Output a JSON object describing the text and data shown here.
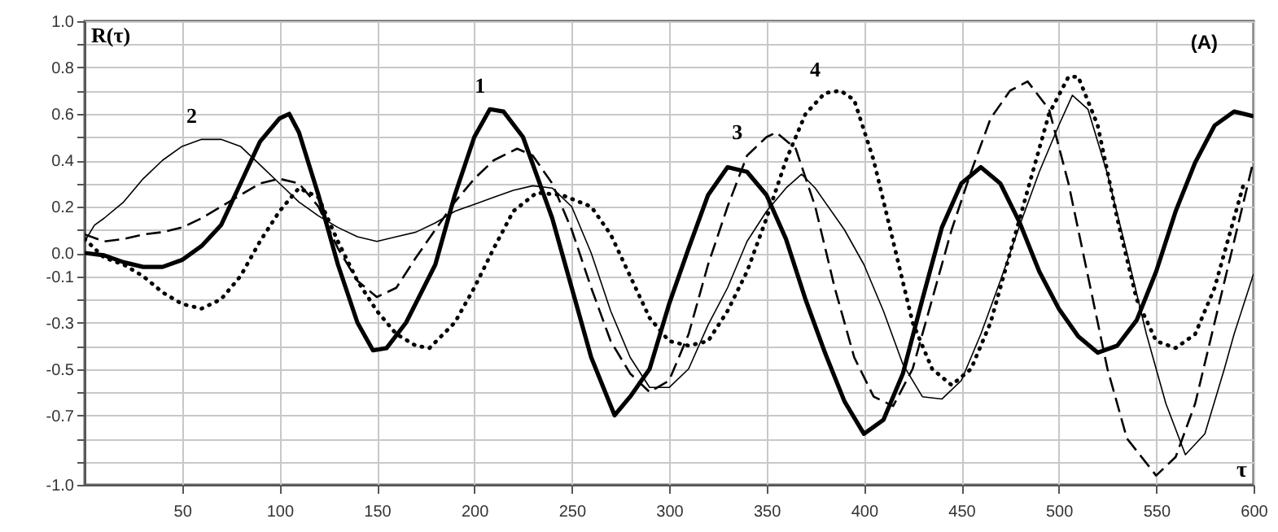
{
  "chart_data": {
    "type": "line",
    "ylabel": "R(τ)",
    "xlabel": "τ",
    "xlim": [
      0,
      600
    ],
    "xticks": [
      50,
      100,
      150,
      200,
      250,
      300,
      350,
      400,
      450,
      500,
      550,
      600
    ],
    "ylim": [
      -1.0,
      1.0
    ],
    "yticks": [
      {
        "value": 1.0,
        "label": "1.0"
      },
      {
        "value": 0.9,
        "label": null
      },
      {
        "value": 0.8,
        "label": "0.8"
      },
      {
        "value": 0.7,
        "label": null
      },
      {
        "value": 0.6,
        "label": "0.6"
      },
      {
        "value": 0.5,
        "label": null
      },
      {
        "value": 0.4,
        "label": "0.4"
      },
      {
        "value": 0.3,
        "label": null
      },
      {
        "value": 0.2,
        "label": "0.2"
      },
      {
        "value": 0.1,
        "label": null
      },
      {
        "value": 0.0,
        "label": "0.0"
      },
      {
        "value": -0.1,
        "label": "-0.1"
      },
      {
        "value": -0.2,
        "label": null
      },
      {
        "value": -0.3,
        "label": "-0.3"
      },
      {
        "value": -0.4,
        "label": null
      },
      {
        "value": -0.5,
        "label": "-0.5"
      },
      {
        "value": -0.6,
        "label": null
      },
      {
        "value": -0.7,
        "label": "-0.7"
      },
      {
        "value": -0.8,
        "label": null
      },
      {
        "value": -0.9,
        "label": null
      },
      {
        "value": -1.0,
        "label": "-1.0"
      }
    ],
    "grid": true,
    "marker": "none",
    "annotations": [
      {
        "text": "1",
        "x": 208,
        "y": 0.62
      },
      {
        "text": "2",
        "x": 60,
        "y": 0.49
      },
      {
        "text": "3",
        "x": 340,
        "y": 0.42
      },
      {
        "text": "4",
        "x": 380,
        "y": 0.69
      },
      "(A)"
    ],
    "series": [
      {
        "color": "#000000",
        "line_style": "solid",
        "x": [
          0,
          10,
          20,
          30,
          40,
          50,
          60,
          70,
          80,
          90,
          100,
          105,
          110,
          120,
          130,
          140,
          148,
          155,
          165,
          180,
          190,
          200,
          208,
          215,
          225,
          240,
          250,
          260,
          272,
          280,
          290,
          300,
          310,
          320,
          330,
          340,
          350,
          360,
          370,
          380,
          390,
          400,
          410,
          420,
          430,
          440,
          450,
          460,
          470,
          480,
          490,
          500,
          510,
          520,
          530,
          540,
          550,
          560,
          570,
          580,
          590,
          600
        ],
        "values": [
          0.0,
          -0.01,
          -0.04,
          -0.06,
          -0.06,
          -0.03,
          0.03,
          0.12,
          0.3,
          0.48,
          0.58,
          0.6,
          0.52,
          0.25,
          -0.05,
          -0.3,
          -0.42,
          -0.41,
          -0.3,
          -0.05,
          0.25,
          0.5,
          0.62,
          0.61,
          0.5,
          0.15,
          -0.15,
          -0.45,
          -0.7,
          -0.62,
          -0.5,
          -0.22,
          0.02,
          0.25,
          0.37,
          0.35,
          0.25,
          0.06,
          -0.2,
          -0.43,
          -0.64,
          -0.78,
          -0.72,
          -0.52,
          -0.2,
          0.11,
          0.3,
          0.37,
          0.3,
          0.13,
          -0.08,
          -0.24,
          -0.36,
          -0.43,
          -0.4,
          -0.29,
          -0.08,
          0.18,
          0.39,
          0.55,
          0.61,
          0.59
        ]
      },
      {
        "color": "#000000",
        "line_style": "solid",
        "x": [
          0,
          5,
          10,
          20,
          30,
          40,
          50,
          60,
          70,
          80,
          90,
          100,
          110,
          120,
          130,
          140,
          150,
          160,
          170,
          180,
          190,
          200,
          210,
          220,
          230,
          240,
          250,
          260,
          270,
          280,
          290,
          300,
          310,
          320,
          330,
          340,
          350,
          360,
          368,
          375,
          390,
          400,
          410,
          420,
          430,
          440,
          450,
          460,
          470,
          480,
          490,
          500,
          507,
          515,
          525,
          535,
          545,
          555,
          565,
          575,
          585,
          590,
          600
        ],
        "values": [
          0.05,
          0.12,
          0.15,
          0.22,
          0.32,
          0.4,
          0.46,
          0.49,
          0.49,
          0.46,
          0.38,
          0.3,
          0.22,
          0.16,
          0.11,
          0.07,
          0.05,
          0.07,
          0.09,
          0.13,
          0.18,
          0.21,
          0.24,
          0.27,
          0.29,
          0.28,
          0.2,
          0.0,
          -0.25,
          -0.45,
          -0.58,
          -0.58,
          -0.5,
          -0.31,
          -0.15,
          0.05,
          0.18,
          0.28,
          0.34,
          0.28,
          0.1,
          -0.05,
          -0.25,
          -0.48,
          -0.62,
          -0.63,
          -0.55,
          -0.35,
          -0.12,
          0.12,
          0.35,
          0.55,
          0.68,
          0.62,
          0.34,
          0.0,
          -0.35,
          -0.65,
          -0.87,
          -0.78,
          -0.5,
          -0.35,
          -0.09
        ]
      },
      {
        "color": "#000000",
        "line_style": "dashed",
        "x": [
          0,
          10,
          20,
          30,
          40,
          50,
          60,
          70,
          80,
          90,
          100,
          110,
          120,
          130,
          140,
          150,
          160,
          170,
          180,
          190,
          200,
          210,
          222,
          230,
          240,
          250,
          260,
          270,
          280,
          290,
          300,
          310,
          320,
          330,
          340,
          350,
          355,
          365,
          375,
          385,
          395,
          405,
          415,
          425,
          435,
          445,
          455,
          465,
          475,
          484,
          495,
          505,
          515,
          525,
          535,
          550,
          560,
          570,
          580,
          590,
          600
        ],
        "values": [
          0.08,
          0.05,
          0.06,
          0.08,
          0.09,
          0.11,
          0.15,
          0.2,
          0.25,
          0.3,
          0.32,
          0.3,
          0.2,
          0.02,
          -0.12,
          -0.19,
          -0.15,
          -0.02,
          0.1,
          0.22,
          0.32,
          0.4,
          0.45,
          0.42,
          0.3,
          0.1,
          -0.15,
          -0.38,
          -0.52,
          -0.6,
          -0.55,
          -0.35,
          -0.05,
          0.2,
          0.42,
          0.5,
          0.52,
          0.45,
          0.2,
          -0.15,
          -0.45,
          -0.62,
          -0.66,
          -0.5,
          -0.2,
          0.1,
          0.35,
          0.58,
          0.7,
          0.74,
          0.62,
          0.3,
          -0.1,
          -0.5,
          -0.8,
          -0.96,
          -0.88,
          -0.65,
          -0.3,
          0.05,
          0.4
        ]
      },
      {
        "color": "#000000",
        "line_style": "dotted",
        "x": [
          0,
          10,
          20,
          30,
          40,
          50,
          60,
          70,
          80,
          90,
          100,
          110,
          120,
          130,
          140,
          150,
          160,
          170,
          177,
          190,
          200,
          210,
          220,
          232,
          245,
          260,
          270,
          280,
          290,
          300,
          310,
          320,
          330,
          340,
          350,
          360,
          370,
          380,
          388,
          395,
          405,
          415,
          425,
          435,
          445,
          455,
          465,
          475,
          485,
          495,
          505,
          510,
          520,
          530,
          540,
          550,
          560,
          570,
          580,
          590,
          595
        ],
        "values": [
          0.06,
          -0.02,
          -0.05,
          -0.1,
          -0.17,
          -0.22,
          -0.24,
          -0.2,
          -0.1,
          0.05,
          0.18,
          0.28,
          0.24,
          0.05,
          -0.12,
          -0.25,
          -0.35,
          -0.4,
          -0.41,
          -0.3,
          -0.15,
          0.02,
          0.18,
          0.26,
          0.25,
          0.2,
          0.08,
          -0.1,
          -0.28,
          -0.38,
          -0.4,
          -0.38,
          -0.25,
          -0.08,
          0.15,
          0.4,
          0.6,
          0.69,
          0.7,
          0.66,
          0.4,
          0.05,
          -0.3,
          -0.5,
          -0.57,
          -0.5,
          -0.3,
          0.0,
          0.3,
          0.6,
          0.76,
          0.76,
          0.55,
          0.15,
          -0.2,
          -0.38,
          -0.41,
          -0.35,
          -0.15,
          0.15,
          0.3
        ]
      }
    ]
  }
}
